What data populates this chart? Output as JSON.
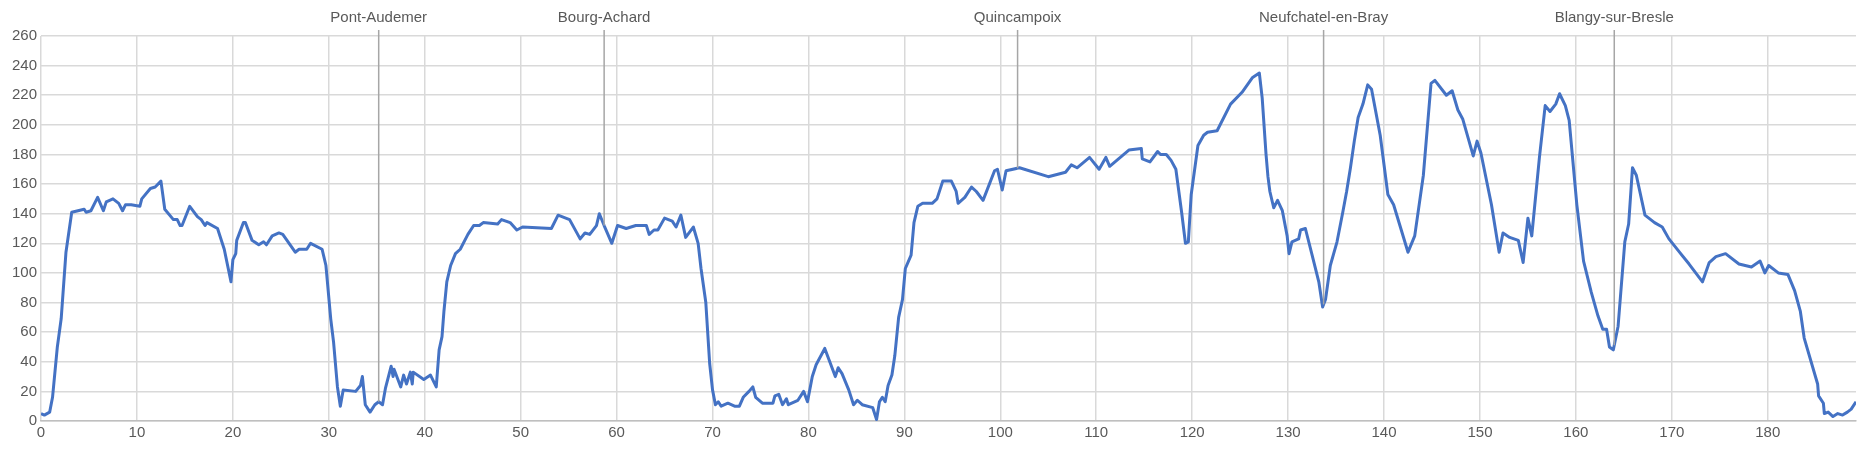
{
  "chart_data": {
    "type": "line",
    "xlim": [
      0,
      189.2
    ],
    "xticks": [
      0,
      10,
      20,
      30,
      40,
      50,
      60,
      70,
      80,
      90,
      100,
      110,
      120,
      130,
      140,
      150,
      160,
      170,
      180
    ],
    "ylim": [
      0,
      260
    ],
    "yticks": [
      0,
      20,
      40,
      60,
      80,
      100,
      120,
      140,
      160,
      180,
      200,
      220,
      240,
      260
    ],
    "grid": true,
    "legend": false,
    "marker": "none",
    "line_style": "solid",
    "series": [
      {
        "color": "#4472c4",
        "x": [
          0,
          0.35,
          0.9,
          1.2,
          1.7,
          2.1,
          2.6,
          3.2,
          4.5,
          4.7,
          5.2,
          5.9,
          6.5,
          6.8,
          7.5,
          8.1,
          8.5,
          8.8,
          9.4,
          10.3,
          10.5,
          11.4,
          11.9,
          12.5,
          12.9,
          13.8,
          14.2,
          14.5,
          14.7,
          15.5,
          16.3,
          16.7,
          17.1,
          17.3,
          18.4,
          19.1,
          19.8,
          20.0,
          20.3,
          20.4,
          21.1,
          21.3,
          22.0,
          22.7,
          23.2,
          23.5,
          24.1,
          24.8,
          25.2,
          26.5,
          26.9,
          27.7,
          28.1,
          29.3,
          29.7,
          30.2,
          30.5,
          30.9,
          31.2,
          31.5,
          32.8,
          33.3,
          33.5,
          33.8,
          34.3,
          34.8,
          35.2,
          35.6,
          35.9,
          36.5,
          36.7,
          36.8,
          37.5,
          37.8,
          38.1,
          38.5,
          38.7,
          38.8,
          39.9,
          40.6,
          41.2,
          41.5,
          41.8,
          42.0,
          42.3,
          42.7,
          43.2,
          43.7,
          44.5,
          45.1,
          45.7,
          46.1,
          47.6,
          48.0,
          48.9,
          49.6,
          50.2,
          53.2,
          53.9,
          55.1,
          56.2,
          56.7,
          57.2,
          57.9,
          58.2,
          58.7,
          59.5,
          60.1,
          61.0,
          62.0,
          63.1,
          63.4,
          63.9,
          64.3,
          65.0,
          65.8,
          66.2,
          66.7,
          67.2,
          68.0,
          68.5,
          68.8,
          69.3,
          69.7,
          70.0,
          70.3,
          70.6,
          70.9,
          71.6,
          72.3,
          72.8,
          73.2,
          73.8,
          74.2,
          74.5,
          75.2,
          76.3,
          76.5,
          76.9,
          77.3,
          77.7,
          77.9,
          78.9,
          79.5,
          79.9,
          80.4,
          80.8,
          81.7,
          82.8,
          83.1,
          83.5,
          84.2,
          84.7,
          85.1,
          85.6,
          86.7,
          87.1,
          87.4,
          87.7,
          88.0,
          88.3,
          88.7,
          89.0,
          89.4,
          89.8,
          90.1,
          90.7,
          91.0,
          91.4,
          91.9,
          92.4,
          92.9,
          93.4,
          94.0,
          94.9,
          95.4,
          95.6,
          96.3,
          97.0,
          97.5,
          98.2,
          99.4,
          99.7,
          100.2,
          100.6,
          102.0,
          105.0,
          106.8,
          107.4,
          108.0,
          109.3,
          110.3,
          111.0,
          111.4,
          113.4,
          114.7,
          114.8,
          115.6,
          116.4,
          116.7,
          117.3,
          117.8,
          118.3,
          118.9,
          119.3,
          119.6,
          119.9,
          120.6,
          121.2,
          121.6,
          122.6,
          124.0,
          125.2,
          126.3,
          127.0,
          127.3,
          127.7,
          127.9,
          128.1,
          128.5,
          128.9,
          129.4,
          129.9,
          130.1,
          130.4,
          131.1,
          131.3,
          131.8,
          132.7,
          133.2,
          133.6,
          133.9,
          134.4,
          135.1,
          135.7,
          136.1,
          136.5,
          136.9,
          137.3,
          137.8,
          138.3,
          138.7,
          139.6,
          140.4,
          141.0,
          142.5,
          143.2,
          144.1,
          144.9,
          145.3,
          146.5,
          147.1,
          147.7,
          148.2,
          149.3,
          149.7,
          150.1,
          151.2,
          152.0,
          152.4,
          153.1,
          154.0,
          154.5,
          155.0,
          155.4,
          156.2,
          156.8,
          157.3,
          157.9,
          158.3,
          158.9,
          159.3,
          160.1,
          160.8,
          161.6,
          162.3,
          162.8,
          163.2,
          163.5,
          163.9,
          164.4,
          165.1,
          165.5,
          165.9,
          166.3,
          167.2,
          168.2,
          169.0,
          169.7,
          170.8,
          171.8,
          173.2,
          173.9,
          174.6,
          175.6,
          177.0,
          178.3,
          179.2,
          179.7,
          180.1,
          181.1,
          182.1,
          182.8,
          183.4,
          183.8,
          185.2,
          185.3,
          185.8,
          185.9,
          186.3,
          186.8,
          187.3,
          187.8,
          188.3,
          188.7,
          189.2
        ],
        "values": [
          5,
          4,
          6,
          16,
          50,
          69,
          114,
          141,
          143,
          141,
          142,
          151,
          142,
          148,
          150,
          147,
          142,
          146,
          146,
          145,
          150,
          157,
          158,
          162,
          143,
          136,
          136,
          132,
          132,
          145,
          138,
          136,
          132,
          134,
          130,
          116,
          94,
          109,
          113,
          122,
          134,
          134,
          122,
          119,
          121,
          119,
          125,
          127,
          126,
          114,
          116,
          116,
          120,
          116,
          105,
          69,
          53,
          23,
          10,
          21,
          20,
          24,
          30,
          11,
          6,
          11,
          13,
          11,
          22,
          37,
          30,
          35,
          23,
          31,
          25,
          33,
          25,
          33,
          28,
          31,
          23,
          48,
          57,
          74,
          94,
          105,
          113,
          116,
          126,
          132,
          132,
          134,
          133,
          136,
          134,
          129,
          131,
          130,
          139,
          136,
          123,
          127,
          126,
          132,
          140,
          132,
          120,
          132,
          130,
          132,
          132,
          126,
          129,
          129,
          137,
          135,
          131,
          139,
          124,
          131,
          120,
          103,
          80,
          39,
          21,
          11,
          13,
          10,
          12,
          10,
          10,
          16,
          20,
          23,
          16,
          12,
          12,
          17,
          18,
          11,
          15,
          11,
          14,
          20,
          13,
          30,
          38,
          49,
          30,
          36,
          32,
          21,
          11,
          14,
          11,
          9,
          1,
          13,
          16,
          13,
          24,
          31,
          44,
          70,
          82,
          103,
          112,
          134,
          145,
          147,
          147,
          147,
          150,
          162,
          162,
          155,
          147,
          151,
          158,
          155,
          149,
          169,
          170,
          156,
          169,
          171,
          165,
          168,
          173,
          171,
          178,
          170,
          178,
          172,
          183,
          184,
          177,
          175,
          182,
          180,
          180,
          176,
          170,
          141,
          120,
          121,
          153,
          186,
          193,
          195,
          196,
          214,
          222,
          232,
          235,
          218,
          180,
          165,
          155,
          144,
          149,
          142,
          125,
          113,
          121,
          123,
          129,
          130,
          107,
          94,
          77,
          82,
          105,
          121,
          141,
          155,
          171,
          189,
          205,
          214,
          227,
          224,
          193,
          153,
          146,
          114,
          125,
          166,
          228,
          230,
          220,
          223,
          210,
          204,
          179,
          189,
          181,
          146,
          114,
          127,
          124,
          122,
          107,
          137,
          125,
          178,
          213,
          209,
          214,
          221,
          213,
          203,
          146,
          108,
          87,
          71,
          62,
          62,
          50,
          48,
          64,
          121,
          133,
          171,
          166,
          139,
          134,
          131,
          123,
          114,
          106,
          94,
          107,
          111,
          113,
          106,
          104,
          108,
          100,
          105,
          100,
          99,
          88,
          74,
          56,
          25,
          17,
          12,
          5,
          6,
          3,
          5,
          4,
          6,
          8,
          13
        ]
      }
    ],
    "ref_lines": [
      {
        "axis": "x",
        "value": 35.2,
        "label": "Pont-Audemer",
        "color": "#a6a6a6"
      },
      {
        "axis": "x",
        "value": 58.7,
        "label": "Bourg-Achard",
        "color": "#a6a6a6"
      },
      {
        "axis": "x",
        "value": 101.8,
        "label": "Quincampoix",
        "color": "#a6a6a6"
      },
      {
        "axis": "x",
        "value": 133.7,
        "label": "Neufchatel-en-Bray",
        "color": "#a6a6a6"
      },
      {
        "axis": "x",
        "value": 164.0,
        "label": "Blangy-sur-Bresle",
        "color": "#a6a6a6"
      }
    ]
  }
}
